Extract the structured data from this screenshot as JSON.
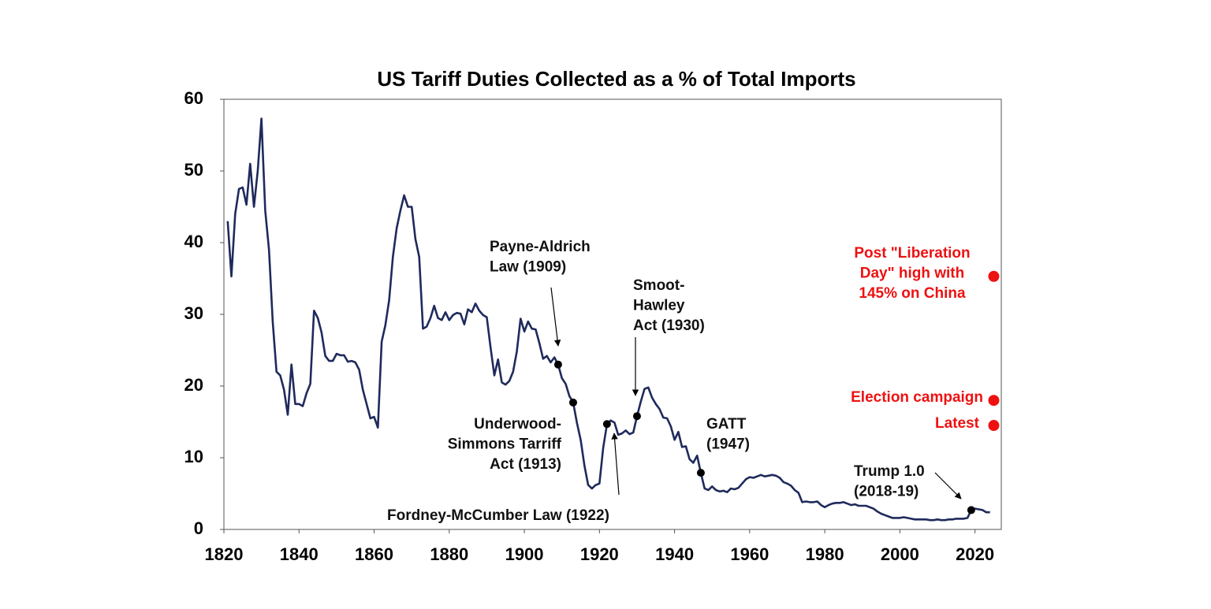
{
  "chart_data": {
    "type": "line",
    "title": "US Tariff Duties Collected as a % of Total Imports",
    "color": "#1f2a5c",
    "x": [
      1821,
      1822,
      1823,
      1824,
      1825,
      1826,
      1827,
      1828,
      1829,
      1830,
      1831,
      1832,
      1833,
      1834,
      1835,
      1836,
      1837,
      1838,
      1839,
      1840,
      1841,
      1842,
      1843,
      1844,
      1845,
      1846,
      1847,
      1848,
      1849,
      1850,
      1851,
      1852,
      1853,
      1854,
      1855,
      1856,
      1857,
      1858,
      1859,
      1860,
      1861,
      1862,
      1863,
      1864,
      1865,
      1866,
      1867,
      1868,
      1869,
      1870,
      1871,
      1872,
      1873,
      1874,
      1875,
      1876,
      1877,
      1878,
      1879,
      1880,
      1881,
      1882,
      1883,
      1884,
      1885,
      1886,
      1887,
      1888,
      1889,
      1890,
      1891,
      1892,
      1893,
      1894,
      1895,
      1896,
      1897,
      1898,
      1899,
      1900,
      1901,
      1902,
      1903,
      1904,
      1905,
      1906,
      1907,
      1908,
      1909,
      1910,
      1911,
      1912,
      1913,
      1914,
      1915,
      1916,
      1917,
      1918,
      1919,
      1920,
      1921,
      1922,
      1923,
      1924,
      1925,
      1926,
      1927,
      1928,
      1929,
      1930,
      1931,
      1932,
      1933,
      1934,
      1935,
      1936,
      1937,
      1938,
      1939,
      1940,
      1941,
      1942,
      1943,
      1944,
      1945,
      1946,
      1947,
      1948,
      1949,
      1950,
      1951,
      1952,
      1953,
      1954,
      1955,
      1956,
      1957,
      1958,
      1959,
      1960,
      1961,
      1962,
      1963,
      1964,
      1965,
      1966,
      1967,
      1968,
      1969,
      1970,
      1971,
      1972,
      1973,
      1974,
      1975,
      1976,
      1977,
      1978,
      1979,
      1980,
      1981,
      1982,
      1983,
      1984,
      1985,
      1986,
      1987,
      1988,
      1989,
      1990,
      1991,
      1992,
      1993,
      1994,
      1995,
      1996,
      1997,
      1998,
      1999,
      2000,
      2001,
      2002,
      2003,
      2004,
      2005,
      2006,
      2007,
      2008,
      2009,
      2010,
      2011,
      2012,
      2013,
      2014,
      2015,
      2016,
      2017,
      2018,
      2019,
      2020,
      2021,
      2022,
      2023,
      2024
    ],
    "values": [
      43,
      35.3,
      44,
      47.5,
      47.7,
      45.3,
      51,
      45,
      50,
      57.3,
      44.5,
      39,
      29,
      22,
      21.5,
      19.5,
      16,
      23,
      17.5,
      17.5,
      17.2,
      19,
      20.3,
      30.5,
      29.5,
      27.5,
      24.2,
      23.5,
      23.5,
      24.5,
      24.3,
      24.3,
      23.4,
      23.5,
      23.3,
      22.3,
      19.5,
      17.5,
      15.5,
      15.7,
      14.2,
      26.2,
      28.5,
      32,
      38,
      42,
      44.5,
      46.6,
      45,
      45,
      40.5,
      38,
      28,
      28.3,
      29.5,
      31.2,
      29.5,
      29.2,
      30.3,
      29.2,
      29.9,
      30.2,
      30.1,
      28.6,
      30.7,
      30.3,
      31.5,
      30.5,
      29.9,
      29.6,
      25.4,
      21.5,
      23.7,
      20.5,
      20.2,
      20.7,
      22,
      24.8,
      29.4,
      27.6,
      29,
      28,
      27.9,
      26,
      23.8,
      24.2,
      23.3,
      24,
      23,
      21.1,
      20.3,
      18.6,
      17.7,
      14.9,
      12.5,
      8.9,
      6.2,
      5.7,
      6.2,
      6.4,
      11.4,
      14.7,
      15.2,
      14.9,
      13.2,
      13.4,
      13.8,
      13.3,
      13.5,
      15.8,
      17.8,
      19.6,
      19.8,
      18.4,
      17.5,
      16.8,
      15.6,
      15.5,
      14.4,
      12.5,
      13.6,
      11.5,
      11.6,
      9.8,
      9.3,
      10.3,
      7.9,
      5.7,
      5.5,
      6,
      5.5,
      5.3,
      5.4,
      5.2,
      5.7,
      5.6,
      5.8,
      6.4,
      7,
      7.3,
      7.2,
      7.4,
      7.6,
      7.4,
      7.5,
      7.6,
      7.5,
      7.2,
      6.6,
      6.4,
      6.1,
      5.5,
      5.1,
      3.8,
      3.9,
      3.8,
      3.8,
      3.9,
      3.4,
      3.1,
      3.4,
      3.6,
      3.7,
      3.7,
      3.8,
      3.6,
      3.4,
      3.5,
      3.3,
      3.3,
      3.3,
      3.1,
      2.9,
      2.5,
      2.2,
      2,
      1.8,
      1.6,
      1.6,
      1.6,
      1.7,
      1.6,
      1.5,
      1.4,
      1.4,
      1.4,
      1.4,
      1.3,
      1.3,
      1.4,
      1.3,
      1.3,
      1.4,
      1.4,
      1.5,
      1.5,
      1.5,
      1.6,
      2.7,
      2.9,
      2.8,
      2.7,
      2.4,
      2.4
    ],
    "xlim": [
      1820,
      2027
    ],
    "xticks": [
      1820,
      1840,
      1860,
      1880,
      1900,
      1920,
      1940,
      1960,
      1980,
      2000,
      2020
    ],
    "ylim": [
      0,
      60
    ],
    "yticks": [
      0,
      10,
      20,
      30,
      40,
      50,
      60
    ],
    "events": [
      {
        "label": [
          "Payne-Aldrich",
          "Law (1909)"
        ],
        "x": 1909,
        "y": 23
      },
      {
        "label": [
          "Underwood-",
          "Simmons Tarriff",
          "Act (1913)"
        ],
        "x": 1913,
        "y": 17.7
      },
      {
        "label": [
          "Fordney-McCumber Law (1922)"
        ],
        "x": 1922,
        "y": 14.7
      },
      {
        "label": [
          "Smoot-",
          "Hawley",
          "Act (1930)"
        ],
        "x": 1930,
        "y": 15.8
      },
      {
        "label": [
          "GATT",
          "(1947)"
        ],
        "x": 1947,
        "y": 7.9
      },
      {
        "label": [
          "Trump 1.0",
          "(2018-19)"
        ],
        "x": 2019,
        "y": 2.7
      }
    ],
    "highlights": [
      {
        "label": [
          "Post \"Liberation",
          "Day\" high with",
          "145% on China"
        ],
        "x": 2025,
        "y": 35.3
      },
      {
        "label": [
          "Election campaign"
        ],
        "x": 2025,
        "y": 18
      },
      {
        "label": [
          "Latest"
        ],
        "x": 2025,
        "y": 14.5
      }
    ],
    "highlight_color": "#ee1111"
  }
}
